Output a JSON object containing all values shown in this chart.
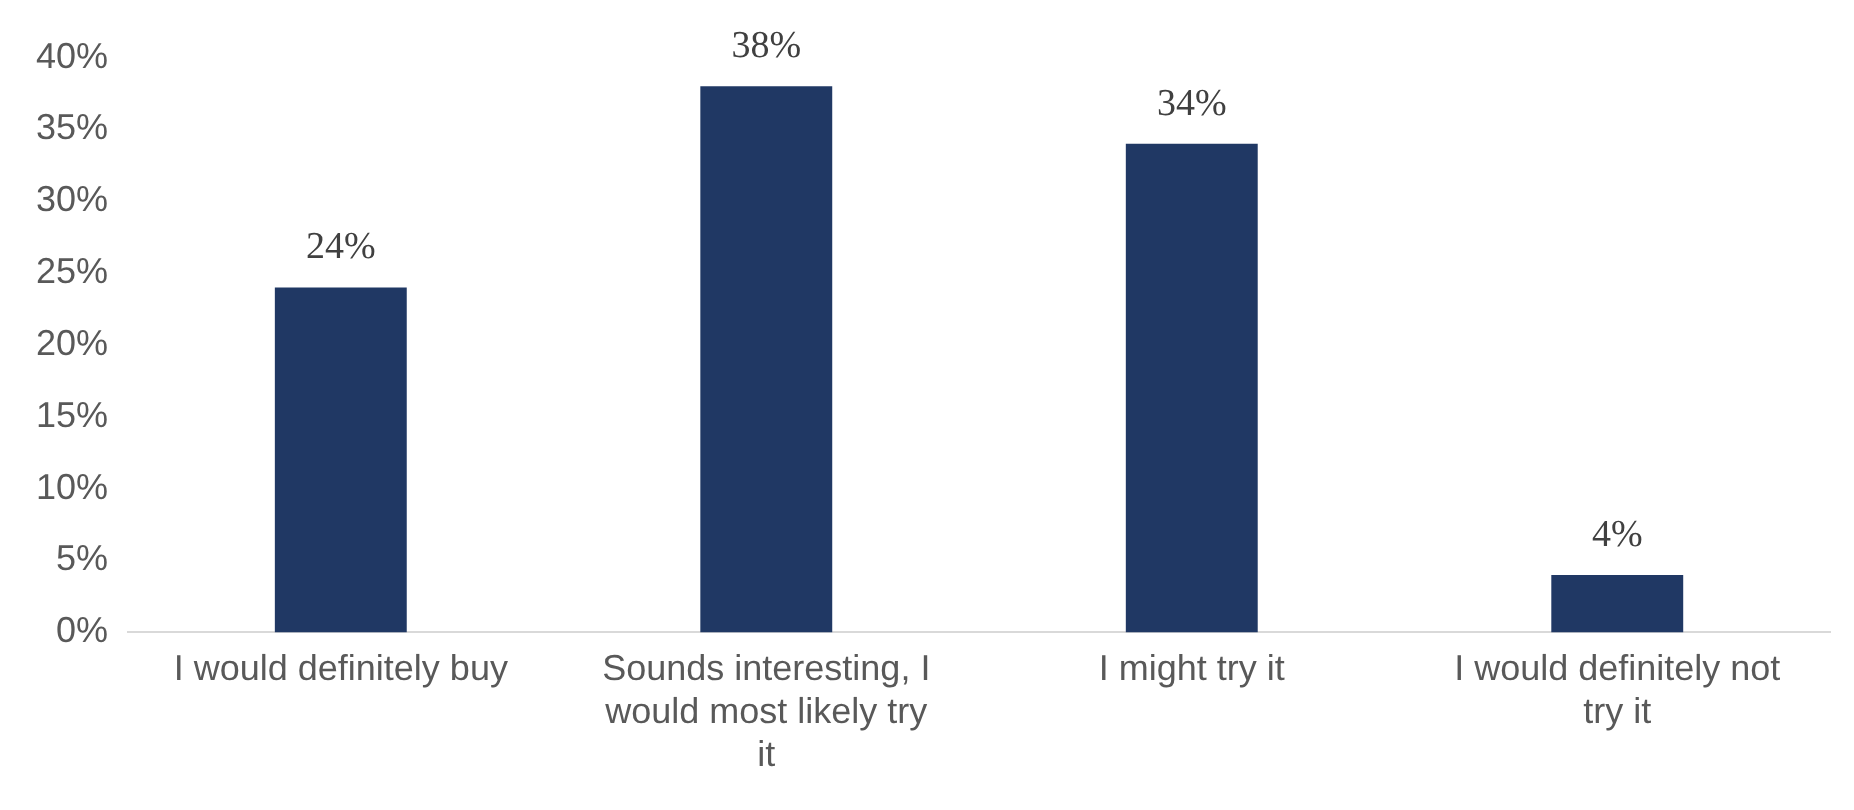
{
  "chart_data": {
    "type": "bar",
    "categories": [
      "I would definitely buy",
      "Sounds interesting, I would most likely try it",
      "I might try it",
      "I would definitely not try it"
    ],
    "values": [
      24,
      38,
      34,
      4
    ],
    "value_labels": [
      "24%",
      "38%",
      "34%",
      "4%"
    ],
    "color": "#203864",
    "ylim": [
      0,
      40
    ],
    "yticks": [
      {
        "value": 0,
        "label": "0%"
      },
      {
        "value": 5,
        "label": "5%"
      },
      {
        "value": 10,
        "label": "10%"
      },
      {
        "value": 15,
        "label": "15%"
      },
      {
        "value": 20,
        "label": "20%"
      },
      {
        "value": 25,
        "label": "25%"
      },
      {
        "value": 30,
        "label": "30%"
      },
      {
        "value": 35,
        "label": "35%"
      },
      {
        "value": 40,
        "label": "40%"
      }
    ],
    "grid": false,
    "legend": false
  }
}
